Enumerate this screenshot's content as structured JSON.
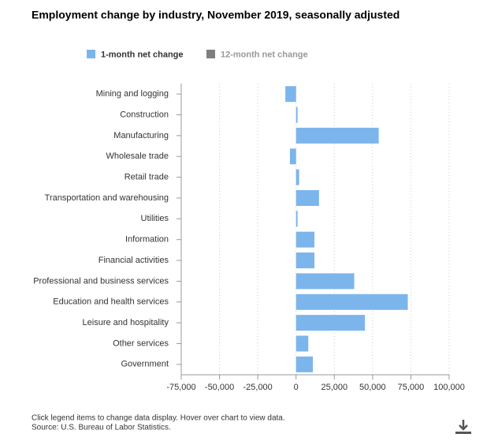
{
  "chart_data": {
    "type": "hbar",
    "title": "Employment change by industry, November 2019, seasonally adjusted",
    "categories": [
      "Mining and logging",
      "Construction",
      "Manufacturing",
      "Wholesale trade",
      "Retail trade",
      "Transportation and warehousing",
      "Utilities",
      "Information",
      "Financial activities",
      "Professional and business services",
      "Education and health services",
      "Leisure and hospitality",
      "Other services",
      "Government"
    ],
    "series": [
      {
        "name": "1-month net change",
        "color": "#7cb5ec",
        "values": [
          -7000,
          1000,
          54000,
          -4000,
          2000,
          15000,
          1000,
          12000,
          12000,
          38000,
          73000,
          45000,
          8000,
          11000
        ]
      },
      {
        "name": "12-month net change",
        "color": "#7f7f7f",
        "visible": false
      }
    ],
    "xlim": [
      -75000,
      100000
    ],
    "xticks": [
      {
        "value": -75000,
        "label": "-75,000"
      },
      {
        "value": -50000,
        "label": "-50,000"
      },
      {
        "value": -25000,
        "label": "-25,000"
      },
      0,
      {
        "value": 25000,
        "label": "25,000"
      },
      {
        "value": 50000,
        "label": "50,000"
      },
      {
        "value": 75000,
        "label": "75,000"
      },
      {
        "value": 100000,
        "label": "100,000"
      }
    ],
    "grid": true,
    "notes": [
      "Click legend items to change data display. Hover over chart to view data.",
      "Source: U.S. Bureau of Labor Statistics."
    ]
  }
}
